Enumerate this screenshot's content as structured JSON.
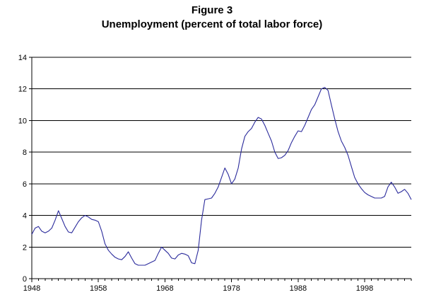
{
  "chart_data": {
    "type": "line",
    "title": "Figure 3",
    "subtitle": "Unemployment (percent of total labor force)",
    "xlabel": "",
    "ylabel": "",
    "xlim": [
      1948,
      2005
    ],
    "ylim": [
      0,
      14
    ],
    "x_ticks": [
      1948,
      1958,
      1968,
      1978,
      1988,
      1998
    ],
    "y_ticks": [
      0,
      2,
      4,
      6,
      8,
      10,
      12,
      14
    ],
    "grid": "horizontal",
    "line_color": "#2b2b9c",
    "series": [
      {
        "x": [
          1948,
          1948.5,
          1949,
          1949.5,
          1950,
          1950.5,
          1951,
          1951.5,
          1952,
          1952.5,
          1953,
          1953.5,
          1954,
          1954.5,
          1955,
          1955.5,
          1956,
          1956.5,
          1957,
          1957.5,
          1958,
          1958.5,
          1959,
          1959.5,
          1960,
          1960.5,
          1961,
          1961.5,
          1962,
          1962.5,
          1963,
          1963.5,
          1964,
          1964.5,
          1965,
          1965.5,
          1966,
          1966.5,
          1967,
          1967.5,
          1968,
          1968.5,
          1969,
          1969.5,
          1970,
          1970.5,
          1971,
          1971.5,
          1972,
          1972.5,
          1973,
          1973.5,
          1974,
          1974.5,
          1975,
          1975.5,
          1976,
          1976.5,
          1977,
          1977.5,
          1978,
          1978.5,
          1979,
          1979.5,
          1980,
          1980.5,
          1981,
          1981.5,
          1982,
          1982.5,
          1983,
          1983.5,
          1984,
          1984.5,
          1985,
          1985.5,
          1986,
          1986.5,
          1987,
          1987.5,
          1988,
          1988.5,
          1989,
          1989.5,
          1990,
          1990.5,
          1991,
          1991.5,
          1992,
          1992.5,
          1993,
          1993.5,
          1994,
          1994.5,
          1995,
          1995.5,
          1996,
          1996.5,
          1997,
          1997.5,
          1998,
          1998.5,
          1999,
          1999.5,
          2000,
          2000.5,
          2001,
          2001.5,
          2002,
          2002.5,
          2003,
          2003.5,
          2004,
          2004.5,
          2005
        ],
        "values": [
          2.8,
          3.2,
          3.3,
          3.0,
          2.9,
          3.0,
          3.2,
          3.7,
          4.3,
          3.8,
          3.3,
          2.95,
          2.9,
          3.25,
          3.6,
          3.85,
          4.0,
          3.9,
          3.75,
          3.7,
          3.6,
          3.0,
          2.2,
          1.8,
          1.55,
          1.35,
          1.25,
          1.2,
          1.4,
          1.7,
          1.3,
          0.95,
          0.85,
          0.85,
          0.85,
          0.95,
          1.05,
          1.15,
          1.6,
          2.0,
          1.8,
          1.6,
          1.3,
          1.25,
          1.5,
          1.6,
          1.55,
          1.45,
          1.0,
          0.95,
          1.8,
          3.7,
          5.0,
          5.05,
          5.1,
          5.4,
          5.8,
          6.4,
          7.0,
          6.6,
          6.0,
          6.3,
          7.0,
          8.2,
          9.0,
          9.3,
          9.5,
          9.9,
          10.2,
          10.1,
          9.7,
          9.2,
          8.7,
          8.0,
          7.6,
          7.65,
          7.8,
          8.1,
          8.6,
          9.0,
          9.35,
          9.3,
          9.7,
          10.2,
          10.7,
          11.0,
          11.5,
          12.0,
          12.1,
          11.9,
          11.0,
          10.1,
          9.3,
          8.7,
          8.3,
          7.8,
          7.1,
          6.4,
          6.0,
          5.7,
          5.45,
          5.3,
          5.2,
          5.1,
          5.1,
          5.1,
          5.2,
          5.8,
          6.1,
          5.8,
          5.4,
          5.5,
          5.65,
          5.4,
          5.0
        ]
      }
    ]
  }
}
